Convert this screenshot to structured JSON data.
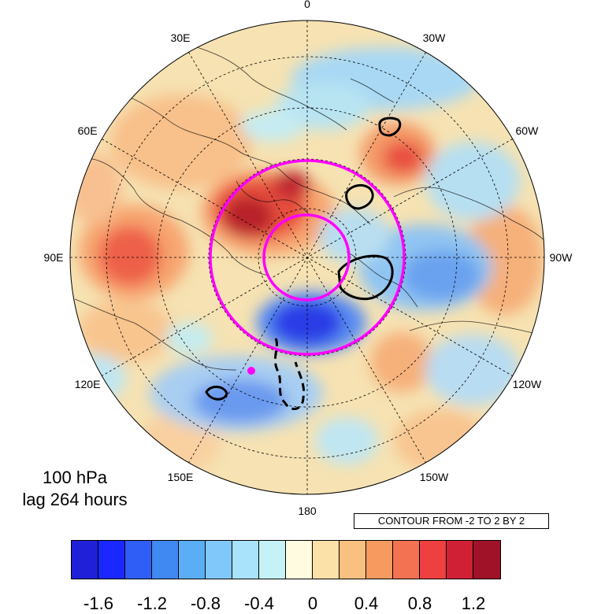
{
  "map": {
    "projection": "north-polar-stereographic",
    "info_level": "100 hPa",
    "info_lag": "lag 264 hours",
    "contour_note": "CONTOUR FROM -2 TO 2 BY 2",
    "longitude_labels": [
      {
        "text": "0",
        "lon": 0
      },
      {
        "text": "30W",
        "lon": -30
      },
      {
        "text": "60W",
        "lon": -60
      },
      {
        "text": "90W",
        "lon": -90
      },
      {
        "text": "120W",
        "lon": -120
      },
      {
        "text": "150W",
        "lon": -150
      },
      {
        "text": "180",
        "lon": 180
      },
      {
        "text": "150E",
        "lon": 150
      },
      {
        "text": "120E",
        "lon": 120
      },
      {
        "text": "90E",
        "lon": 90
      },
      {
        "text": "60E",
        "lon": 60
      },
      {
        "text": "30E",
        "lon": 30
      }
    ],
    "colors": {
      "magenta": "#ff00ff",
      "contour": "#000000",
      "ocean_base": "#f5e2b0"
    },
    "colorbar": {
      "colors": [
        "#2020d8",
        "#1a28ff",
        "#2e5ef5",
        "#4088f2",
        "#5aaef5",
        "#80c8fa",
        "#a8e2fb",
        "#c5f2f6",
        "#fffbe0",
        "#fbe0a8",
        "#f9c080",
        "#f79a60",
        "#f37252",
        "#ee4040",
        "#d02035",
        "#a01228"
      ],
      "labels": [
        "-1.6",
        "-1.2",
        "-0.8",
        "-0.4",
        "0",
        "0.4",
        "0.8",
        "1.2"
      ]
    }
  }
}
